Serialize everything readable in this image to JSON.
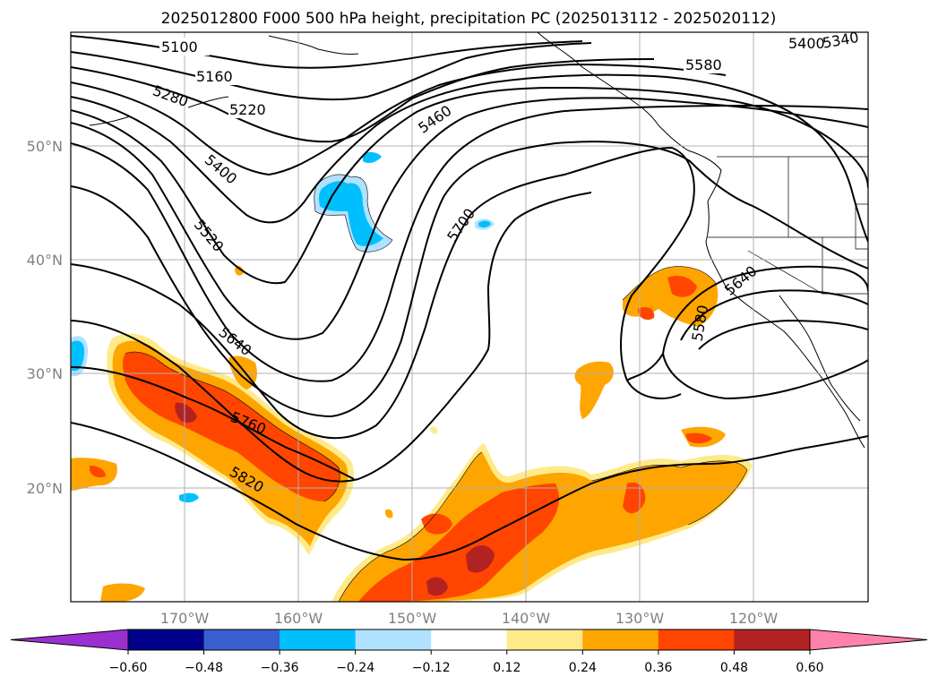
{
  "title": "2025012800 F000 500 hPa height, precipitation PC (2025013112 - 2025020112)",
  "lat_labels": [
    "50°N",
    "40°N",
    "30°N",
    "20°N"
  ],
  "lon_labels": [
    "170°W",
    "160°W",
    "150°W",
    "140°W",
    "130°W",
    "120°W"
  ],
  "contour_labels": [
    "5100",
    "5160",
    "5220",
    "5280",
    "5400",
    "5520",
    "5460",
    "5700",
    "5640",
    "5760",
    "5820",
    "5400",
    "5340",
    "5580",
    "5640",
    "5580"
  ],
  "colorbar": {
    "ticks": [
      "−0.60",
      "−0.48",
      "−0.36",
      "−0.24",
      "−0.12",
      "0.12",
      "0.24",
      "0.36",
      "0.48",
      "0.60"
    ],
    "colors": [
      "#9b30d0",
      "#00008b",
      "#3a5fcd",
      "#00bfff",
      "#b0e2ff",
      "#ffffff",
      "#ffea8a",
      "#ffa500",
      "#ff4500",
      "#b22222",
      "#ff82ab"
    ]
  },
  "chart_data": {
    "type": "heatmap",
    "variable": "500 hPa height contours with precipitation PC shading",
    "extent": {
      "lon": [
        -180,
        -110
      ],
      "lat": [
        10,
        60
      ]
    },
    "grid": true,
    "colorbar_levels": [
      -0.6,
      -0.48,
      -0.36,
      -0.24,
      -0.12,
      0.12,
      0.24,
      0.36,
      0.48,
      0.6
    ],
    "height_contours": [
      5100,
      5160,
      5220,
      5280,
      5340,
      5400,
      5460,
      5520,
      5580,
      5640,
      5700,
      5760,
      5820
    ]
  }
}
